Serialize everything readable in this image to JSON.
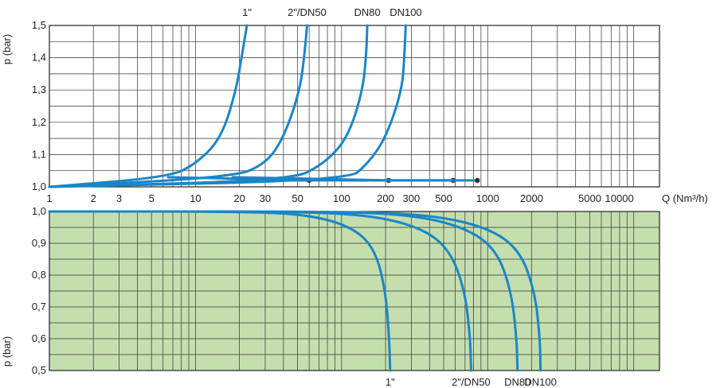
{
  "chart_data": [
    {
      "type": "line",
      "xlabel": "Q (Nm³/h)",
      "ylabel": "p (bar)",
      "x_scale": "log",
      "xlim": [
        1,
        15000
      ],
      "ylim": [
        1.0,
        1.5
      ],
      "grid": true,
      "background": "#ffffff",
      "curve_color": "#1a86c7",
      "x_tick_labels": [
        "1",
        "2",
        "3",
        "5",
        "10",
        "20",
        "30",
        "50",
        "100",
        "200",
        "300",
        "500",
        "1000",
        "2000",
        "5000",
        "10000"
      ],
      "y_tick_labels": [
        "1,0",
        "1,1",
        "1,2",
        "1,3",
        "1,4",
        "1,5"
      ],
      "top_labels": [
        "1\"",
        "2\"/DN50",
        "DN80",
        "DN100"
      ],
      "series": [
        {
          "name": "1\"",
          "x": [
            1,
            6.5,
            10,
            15,
            19,
            21,
            22.5
          ],
          "y": [
            1.0,
            1.03,
            1.07,
            1.15,
            1.3,
            1.42,
            1.5
          ]
        },
        {
          "name": "2\"/DN50",
          "x": [
            1,
            18,
            30,
            40,
            52,
            56,
            58
          ],
          "y": [
            1.0,
            1.03,
            1.07,
            1.15,
            1.3,
            1.42,
            1.5
          ]
        },
        {
          "name": "DN80",
          "x": [
            1,
            45,
            75,
            110,
            140,
            148,
            150
          ],
          "y": [
            1.0,
            1.02,
            1.07,
            1.15,
            1.3,
            1.42,
            1.5
          ]
        },
        {
          "name": "DN100",
          "x": [
            1,
            110,
            150,
            200,
            260,
            270,
            275
          ],
          "y": [
            1.0,
            1.02,
            1.07,
            1.15,
            1.3,
            1.42,
            1.5
          ]
        }
      ],
      "markers": [
        {
          "x": [
            6.5,
            60
          ],
          "y": [
            1.03,
            1.02
          ]
        },
        {
          "x": [
            18,
            210
          ],
          "y": [
            1.03,
            1.02
          ]
        },
        {
          "x": [
            45,
            580
          ],
          "y": [
            1.02,
            1.02
          ]
        },
        {
          "x": [
            110,
            850
          ],
          "y": [
            1.02,
            1.02
          ]
        }
      ]
    },
    {
      "type": "line",
      "xlabel": "",
      "ylabel": "p (bar)",
      "x_scale": "log",
      "xlim": [
        1,
        15000
      ],
      "ylim": [
        0.5,
        1.0
      ],
      "grid": true,
      "background": "#c5deae",
      "curve_color": "#1a86c7",
      "y_tick_labels": [
        "1,0",
        "0,9",
        "0,8",
        "0,7",
        "0,6",
        "0,5"
      ],
      "bottom_labels": [
        "1\"",
        "2\"/DN50",
        "DN80",
        "DN100"
      ],
      "series": [
        {
          "name": "1\"",
          "x": [
            1,
            20,
            60,
            120,
            170,
            200,
            212,
            215
          ],
          "y": [
            1.0,
            1.0,
            0.99,
            0.95,
            0.88,
            0.75,
            0.6,
            0.5
          ]
        },
        {
          "name": "2\"/DN50",
          "x": [
            1,
            40,
            150,
            350,
            550,
            700,
            760,
            770
          ],
          "y": [
            1.0,
            1.0,
            0.99,
            0.95,
            0.88,
            0.75,
            0.6,
            0.5
          ]
        },
        {
          "name": "DN80",
          "x": [
            1,
            80,
            300,
            700,
            1150,
            1450,
            1580,
            1600
          ],
          "y": [
            1.0,
            1.0,
            0.99,
            0.95,
            0.88,
            0.75,
            0.6,
            0.5
          ]
        },
        {
          "name": "DN100",
          "x": [
            1,
            100,
            400,
            1000,
            1650,
            2100,
            2280,
            2300
          ],
          "y": [
            1.0,
            1.0,
            0.99,
            0.95,
            0.88,
            0.75,
            0.6,
            0.5
          ]
        }
      ]
    }
  ]
}
